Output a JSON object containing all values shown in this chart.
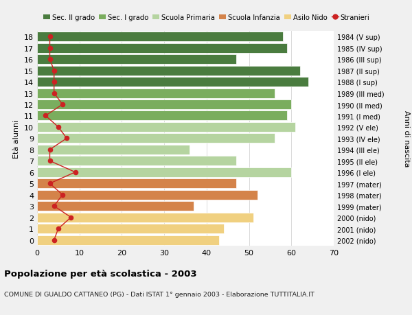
{
  "ages": [
    18,
    17,
    16,
    15,
    14,
    13,
    12,
    11,
    10,
    9,
    8,
    7,
    6,
    5,
    4,
    3,
    2,
    1,
    0
  ],
  "years": [
    "1984 (V sup)",
    "1985 (IV sup)",
    "1986 (III sup)",
    "1987 (II sup)",
    "1988 (I sup)",
    "1989 (III med)",
    "1990 (II med)",
    "1991 (I med)",
    "1992 (V ele)",
    "1993 (IV ele)",
    "1994 (III ele)",
    "1995 (II ele)",
    "1996 (I ele)",
    "1997 (mater)",
    "1998 (mater)",
    "1999 (mater)",
    "2000 (nido)",
    "2001 (nido)",
    "2002 (nido)"
  ],
  "bar_values": [
    58,
    59,
    47,
    62,
    64,
    56,
    60,
    59,
    61,
    56,
    36,
    47,
    60,
    47,
    52,
    37,
    51,
    44,
    43
  ],
  "bar_colors": [
    "#4a7c3f",
    "#4a7c3f",
    "#4a7c3f",
    "#4a7c3f",
    "#4a7c3f",
    "#7aad5e",
    "#7aad5e",
    "#7aad5e",
    "#b5d4a0",
    "#b5d4a0",
    "#b5d4a0",
    "#b5d4a0",
    "#b5d4a0",
    "#d4834a",
    "#d4834a",
    "#d4834a",
    "#f0d080",
    "#f0d080",
    "#f0d080"
  ],
  "stranieri_values": [
    3,
    3,
    3,
    4,
    4,
    4,
    6,
    2,
    5,
    7,
    3,
    3,
    9,
    3,
    6,
    4,
    8,
    5,
    4
  ],
  "legend_labels": [
    "Sec. II grado",
    "Sec. I grado",
    "Scuola Primaria",
    "Scuola Infanzia",
    "Asilo Nido",
    "Stranieri"
  ],
  "legend_colors": [
    "#4a7c3f",
    "#7aad5e",
    "#b5d4a0",
    "#d4834a",
    "#f0d080",
    "#cc2222"
  ],
  "ylabel": "Età alunni",
  "ylabel2": "Anni di nascita",
  "title": "Popolazione per età scolastica - 2003",
  "subtitle": "COMUNE DI GUALDO CATTANEO (PG) - Dati ISTAT 1° gennaio 2003 - Elaborazione TUTTITALIA.IT",
  "xlim": [
    0,
    70
  ],
  "fig_bg": "#f0f0f0",
  "plot_bg": "#ffffff"
}
